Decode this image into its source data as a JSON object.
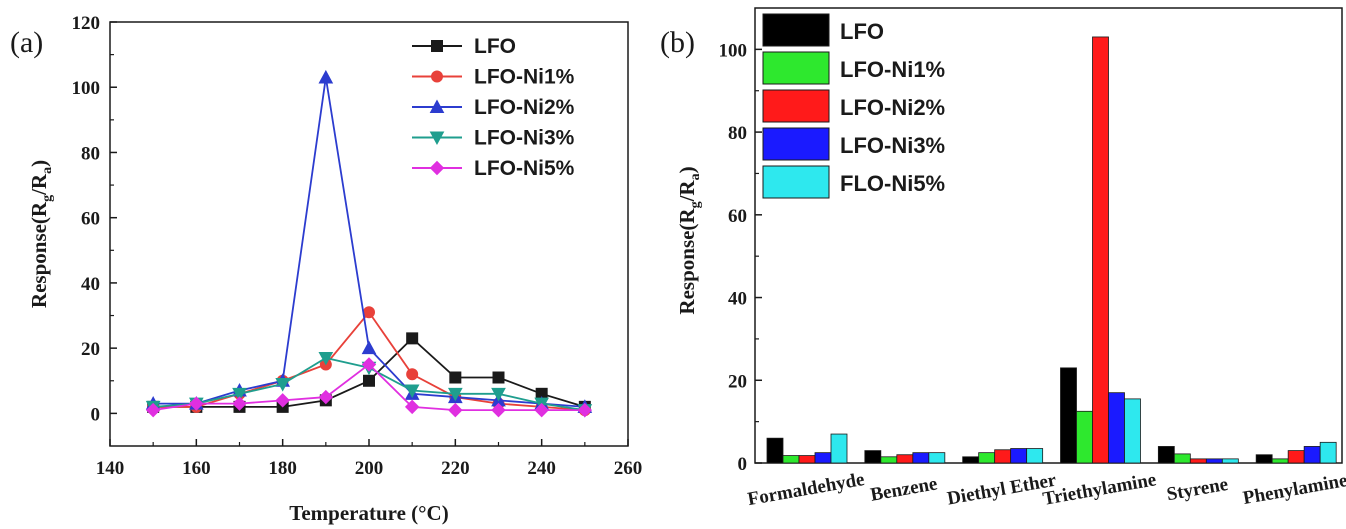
{
  "chart_data": [
    {
      "panel_label": "(a)",
      "type": "line",
      "xlabel": "Temperature (°C)",
      "ylabel": "Response(Rg/Ra)",
      "ylabel_main": "Response(R",
      "ylabel_sub1": "g",
      "ylabel_mid": "/R",
      "ylabel_sub2": "a",
      "ylabel_end": ")",
      "xlim": [
        140,
        260
      ],
      "ylim": [
        -10,
        120
      ],
      "xticks": [
        "140",
        "160",
        "180",
        "200",
        "220",
        "240",
        "260"
      ],
      "yticks": [
        "0",
        "20",
        "40",
        "60",
        "80",
        "100",
        "120"
      ],
      "legend_position": "top-right",
      "x": [
        150,
        160,
        170,
        180,
        190,
        200,
        210,
        220,
        230,
        240,
        250
      ],
      "series": [
        {
          "name": "LFO",
          "color": "#1a1a1a",
          "marker": "square",
          "values": [
            2,
            2,
            2,
            2,
            4,
            10,
            23,
            11,
            11,
            6,
            2
          ]
        },
        {
          "name": "LFO-Ni1%",
          "color": "#e8413a",
          "marker": "circle",
          "values": [
            2,
            2,
            6,
            10,
            15,
            31,
            12,
            5,
            3,
            2,
            1
          ]
        },
        {
          "name": "LFO-Ni2%",
          "color": "#2c3ccf",
          "marker": "triangle-up",
          "values": [
            3,
            3,
            7,
            10,
            103,
            20,
            6,
            5,
            4,
            3,
            2
          ]
        },
        {
          "name": "LFO-Ni3%",
          "color": "#1f9e8e",
          "marker": "triangle-down",
          "values": [
            2,
            3,
            6,
            9,
            17,
            14,
            7,
            6,
            6,
            3,
            1
          ]
        },
        {
          "name": "LFO-Ni5%",
          "color": "#e02fe0",
          "marker": "diamond",
          "values": [
            1,
            3,
            3,
            4,
            5,
            15,
            2,
            1,
            1,
            1,
            1
          ]
        }
      ]
    },
    {
      "panel_label": "(b)",
      "type": "bar",
      "ylabel": "Response(Rg/Ra)",
      "ylabel_main": "Response(R",
      "ylabel_sub1": "g",
      "ylabel_mid": "/R",
      "ylabel_sub2": "a",
      "ylabel_end": ")",
      "ylim": [
        0,
        110
      ],
      "yticks": [
        "0",
        "20",
        "40",
        "60",
        "80",
        "100"
      ],
      "legend_position": "top-left",
      "categories": [
        "Formaldehyde",
        "Benzene",
        "Diethyl Ether",
        "Triethylamine",
        "Styrene",
        "Phenylamine"
      ],
      "series": [
        {
          "name": "LFO",
          "color": "#000000",
          "values": [
            6,
            3,
            1.5,
            23,
            4,
            2
          ]
        },
        {
          "name": "LFO-Ni1%",
          "color": "#2ee82e",
          "values": [
            1.8,
            1.5,
            2.5,
            12.5,
            2.2,
            1
          ]
        },
        {
          "name": "LFO-Ni2%",
          "color": "#ff1a1a",
          "values": [
            1.8,
            2,
            3.2,
            103,
            1,
            3
          ]
        },
        {
          "name": "LFO-Ni3%",
          "color": "#1a1aff",
          "values": [
            2.5,
            2.5,
            3.5,
            17,
            1,
            4
          ]
        },
        {
          "name": "FLO-Ni5%",
          "color": "#2ee8ee",
          "values": [
            7,
            2.5,
            3.5,
            15.5,
            1,
            5
          ]
        }
      ]
    }
  ]
}
